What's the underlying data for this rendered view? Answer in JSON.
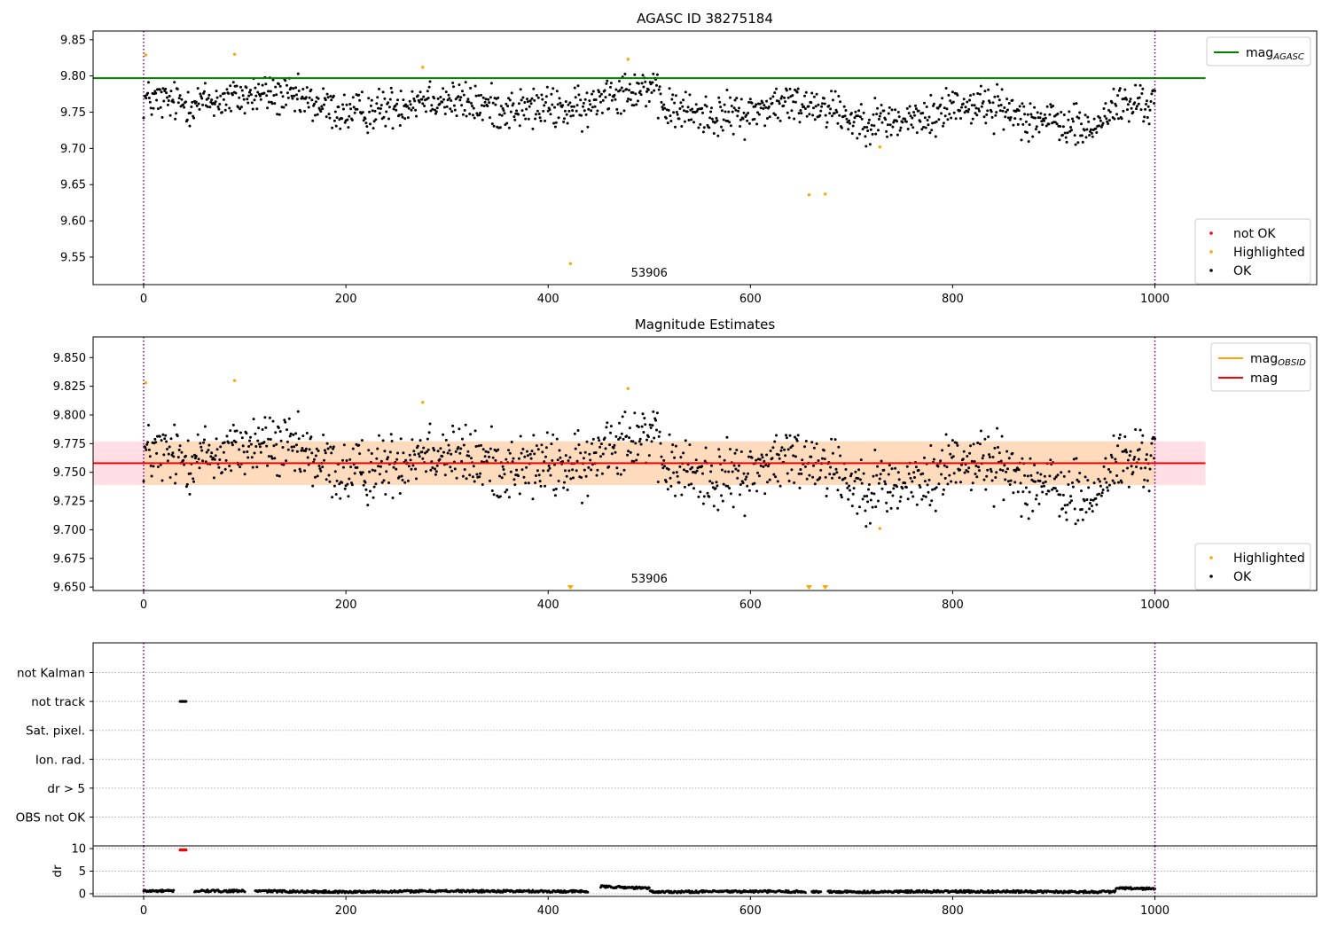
{
  "chart_data": [
    {
      "id": "panel1",
      "type": "scatter",
      "title": "AGASC ID 38275184",
      "xlim": [
        -50,
        1160
      ],
      "ylim": [
        9.512,
        9.862
      ],
      "xticks": [
        0,
        200,
        400,
        600,
        800,
        1000
      ],
      "xtick_labels": [
        "0",
        "200",
        "400",
        "600",
        "800",
        "1000"
      ],
      "yticks": [
        9.55,
        9.6,
        9.65,
        9.7,
        9.75,
        9.8,
        9.85
      ],
      "ytick_labels": [
        "9.55",
        "9.60",
        "9.65",
        "9.70",
        "9.75",
        "9.80",
        "9.85"
      ],
      "obsid_label": "53906",
      "obsid_label_x": 500,
      "vlines": [
        0,
        1000
      ],
      "hline": {
        "name": "mag_AGASC",
        "y": 9.797,
        "x": [
          -50,
          1050
        ],
        "color": "#008000"
      },
      "legend_lines": [
        {
          "label": "mag",
          "sub": "AGASC",
          "color": "#008000"
        }
      ],
      "legend_points": [
        {
          "label": "not OK",
          "color": "#ff0000"
        },
        {
          "label": "Highlighted",
          "color": "#ffa500"
        },
        {
          "label": "OK",
          "color": "#000000"
        }
      ],
      "highlighted": [
        [
          2,
          9.829
        ],
        [
          90,
          9.83
        ],
        [
          276,
          9.812
        ],
        [
          479,
          9.823
        ],
        [
          422,
          9.541
        ],
        [
          658,
          9.636
        ],
        [
          674,
          9.637
        ],
        [
          728,
          9.702
        ]
      ],
      "ok_trend": [
        [
          0,
          9.768
        ],
        [
          40,
          9.762
        ],
        [
          80,
          9.767
        ],
        [
          120,
          9.776
        ],
        [
          160,
          9.765
        ],
        [
          200,
          9.748
        ],
        [
          240,
          9.755
        ],
        [
          280,
          9.772
        ],
        [
          320,
          9.762
        ],
        [
          360,
          9.754
        ],
        [
          400,
          9.756
        ],
        [
          440,
          9.753
        ],
        [
          455,
          9.778
        ],
        [
          500,
          9.785
        ],
        [
          515,
          9.755
        ],
        [
          560,
          9.745
        ],
        [
          600,
          9.748
        ],
        [
          620,
          9.76
        ],
        [
          660,
          9.762
        ],
        [
          680,
          9.758
        ],
        [
          700,
          9.74
        ],
        [
          740,
          9.738
        ],
        [
          780,
          9.742
        ],
        [
          800,
          9.762
        ],
        [
          840,
          9.758
        ],
        [
          880,
          9.742
        ],
        [
          920,
          9.73
        ],
        [
          940,
          9.725
        ],
        [
          955,
          9.755
        ],
        [
          1000,
          9.765
        ]
      ],
      "ok_spread": 0.014
    },
    {
      "id": "panel2",
      "type": "scatter",
      "title": "Magnitude Estimates",
      "xlim": [
        -50,
        1160
      ],
      "ylim": [
        9.647,
        9.868
      ],
      "xticks": [
        0,
        200,
        400,
        600,
        800,
        1000
      ],
      "xtick_labels": [
        "0",
        "200",
        "400",
        "600",
        "800",
        "1000"
      ],
      "yticks": [
        9.65,
        9.675,
        9.7,
        9.725,
        9.75,
        9.775,
        9.8,
        9.825,
        9.85
      ],
      "ytick_labels": [
        "9.650",
        "9.675",
        "9.700",
        "9.725",
        "9.750",
        "9.775",
        "9.800",
        "9.825",
        "9.850"
      ],
      "obsid_label": "53906",
      "obsid_label_x": 500,
      "vlines": [
        0,
        1000
      ],
      "mag_line": {
        "y": 9.758,
        "x": [
          -50,
          1050
        ],
        "color": "#ff0000"
      },
      "mag_obsid_line": {
        "y": 9.758,
        "x": [
          0,
          1000
        ],
        "color": "#ffa500"
      },
      "band_outer": {
        "x": [
          -50,
          1050
        ],
        "y": [
          9.739,
          9.777
        ],
        "color": "#ffc0cb"
      },
      "band_inner": {
        "x": [
          0,
          1000
        ],
        "y": [
          9.739,
          9.777
        ],
        "color": "#ffdab9"
      },
      "legend_lines": [
        {
          "label": "mag",
          "sub": "OBSID",
          "color": "#ffa500"
        },
        {
          "label": "mag",
          "sub": "",
          "color": "#ff0000"
        }
      ],
      "legend_points": [
        {
          "label": "Highlighted",
          "color": "#ffa500"
        },
        {
          "label": "OK",
          "color": "#000000"
        }
      ],
      "highlighted": [
        [
          2,
          9.828
        ],
        [
          90,
          9.83
        ],
        [
          276,
          9.811
        ],
        [
          479,
          9.823
        ],
        [
          728,
          9.701
        ]
      ],
      "below_markers": [
        422,
        658,
        674
      ],
      "ok_trend": [
        [
          0,
          9.768
        ],
        [
          40,
          9.762
        ],
        [
          80,
          9.767
        ],
        [
          120,
          9.776
        ],
        [
          160,
          9.765
        ],
        [
          200,
          9.748
        ],
        [
          240,
          9.755
        ],
        [
          280,
          9.772
        ],
        [
          320,
          9.762
        ],
        [
          360,
          9.754
        ],
        [
          400,
          9.756
        ],
        [
          440,
          9.753
        ],
        [
          455,
          9.778
        ],
        [
          500,
          9.785
        ],
        [
          515,
          9.755
        ],
        [
          560,
          9.745
        ],
        [
          600,
          9.748
        ],
        [
          620,
          9.76
        ],
        [
          660,
          9.762
        ],
        [
          680,
          9.758
        ],
        [
          700,
          9.74
        ],
        [
          740,
          9.738
        ],
        [
          780,
          9.742
        ],
        [
          800,
          9.762
        ],
        [
          840,
          9.758
        ],
        [
          880,
          9.742
        ],
        [
          920,
          9.73
        ],
        [
          940,
          9.725
        ],
        [
          955,
          9.755
        ],
        [
          1000,
          9.765
        ]
      ],
      "ok_spread": 0.014
    },
    {
      "id": "panel3",
      "type": "scatter",
      "title": "",
      "xlim": [
        -50,
        1160
      ],
      "categories": [
        "not Kalman",
        "not track",
        "Sat. pixel.",
        "Ion. rad.",
        "dr > 5",
        "OBS not OK"
      ],
      "flag_points": [
        {
          "category": "not track",
          "x": [
            36,
            42
          ],
          "color": "#000000"
        }
      ],
      "vlines": [
        0,
        1000
      ]
    },
    {
      "id": "panel4",
      "type": "scatter",
      "title": "",
      "xlim": [
        -50,
        1160
      ],
      "ylim": [
        -0.6,
        10.6
      ],
      "ylabel": "dr",
      "yticks": [
        0,
        5,
        10
      ],
      "ytick_labels": [
        "0",
        "5",
        "10"
      ],
      "xticks": [
        0,
        200,
        400,
        600,
        800,
        1000
      ],
      "xtick_labels": [
        "0",
        "200",
        "400",
        "600",
        "800",
        "1000"
      ],
      "vlines": [
        0,
        1000
      ],
      "flagged": {
        "x": [
          36,
          42
        ],
        "y": 9.7,
        "color": "#ff0000"
      },
      "dr_trend": [
        [
          0,
          0.6
        ],
        [
          100,
          0.6
        ],
        [
          200,
          0.4
        ],
        [
          300,
          0.6
        ],
        [
          448,
          0.5
        ],
        [
          450,
          1.6
        ],
        [
          500,
          1.2
        ],
        [
          502,
          0.4
        ],
        [
          600,
          0.5
        ],
        [
          700,
          0.4
        ],
        [
          800,
          0.5
        ],
        [
          960,
          0.4
        ],
        [
          962,
          1.2
        ],
        [
          1000,
          1.1
        ]
      ],
      "gaps": [
        [
          30,
          50
        ],
        [
          100,
          110
        ],
        [
          440,
          452
        ],
        [
          655,
          660
        ],
        [
          670,
          676
        ]
      ]
    }
  ]
}
